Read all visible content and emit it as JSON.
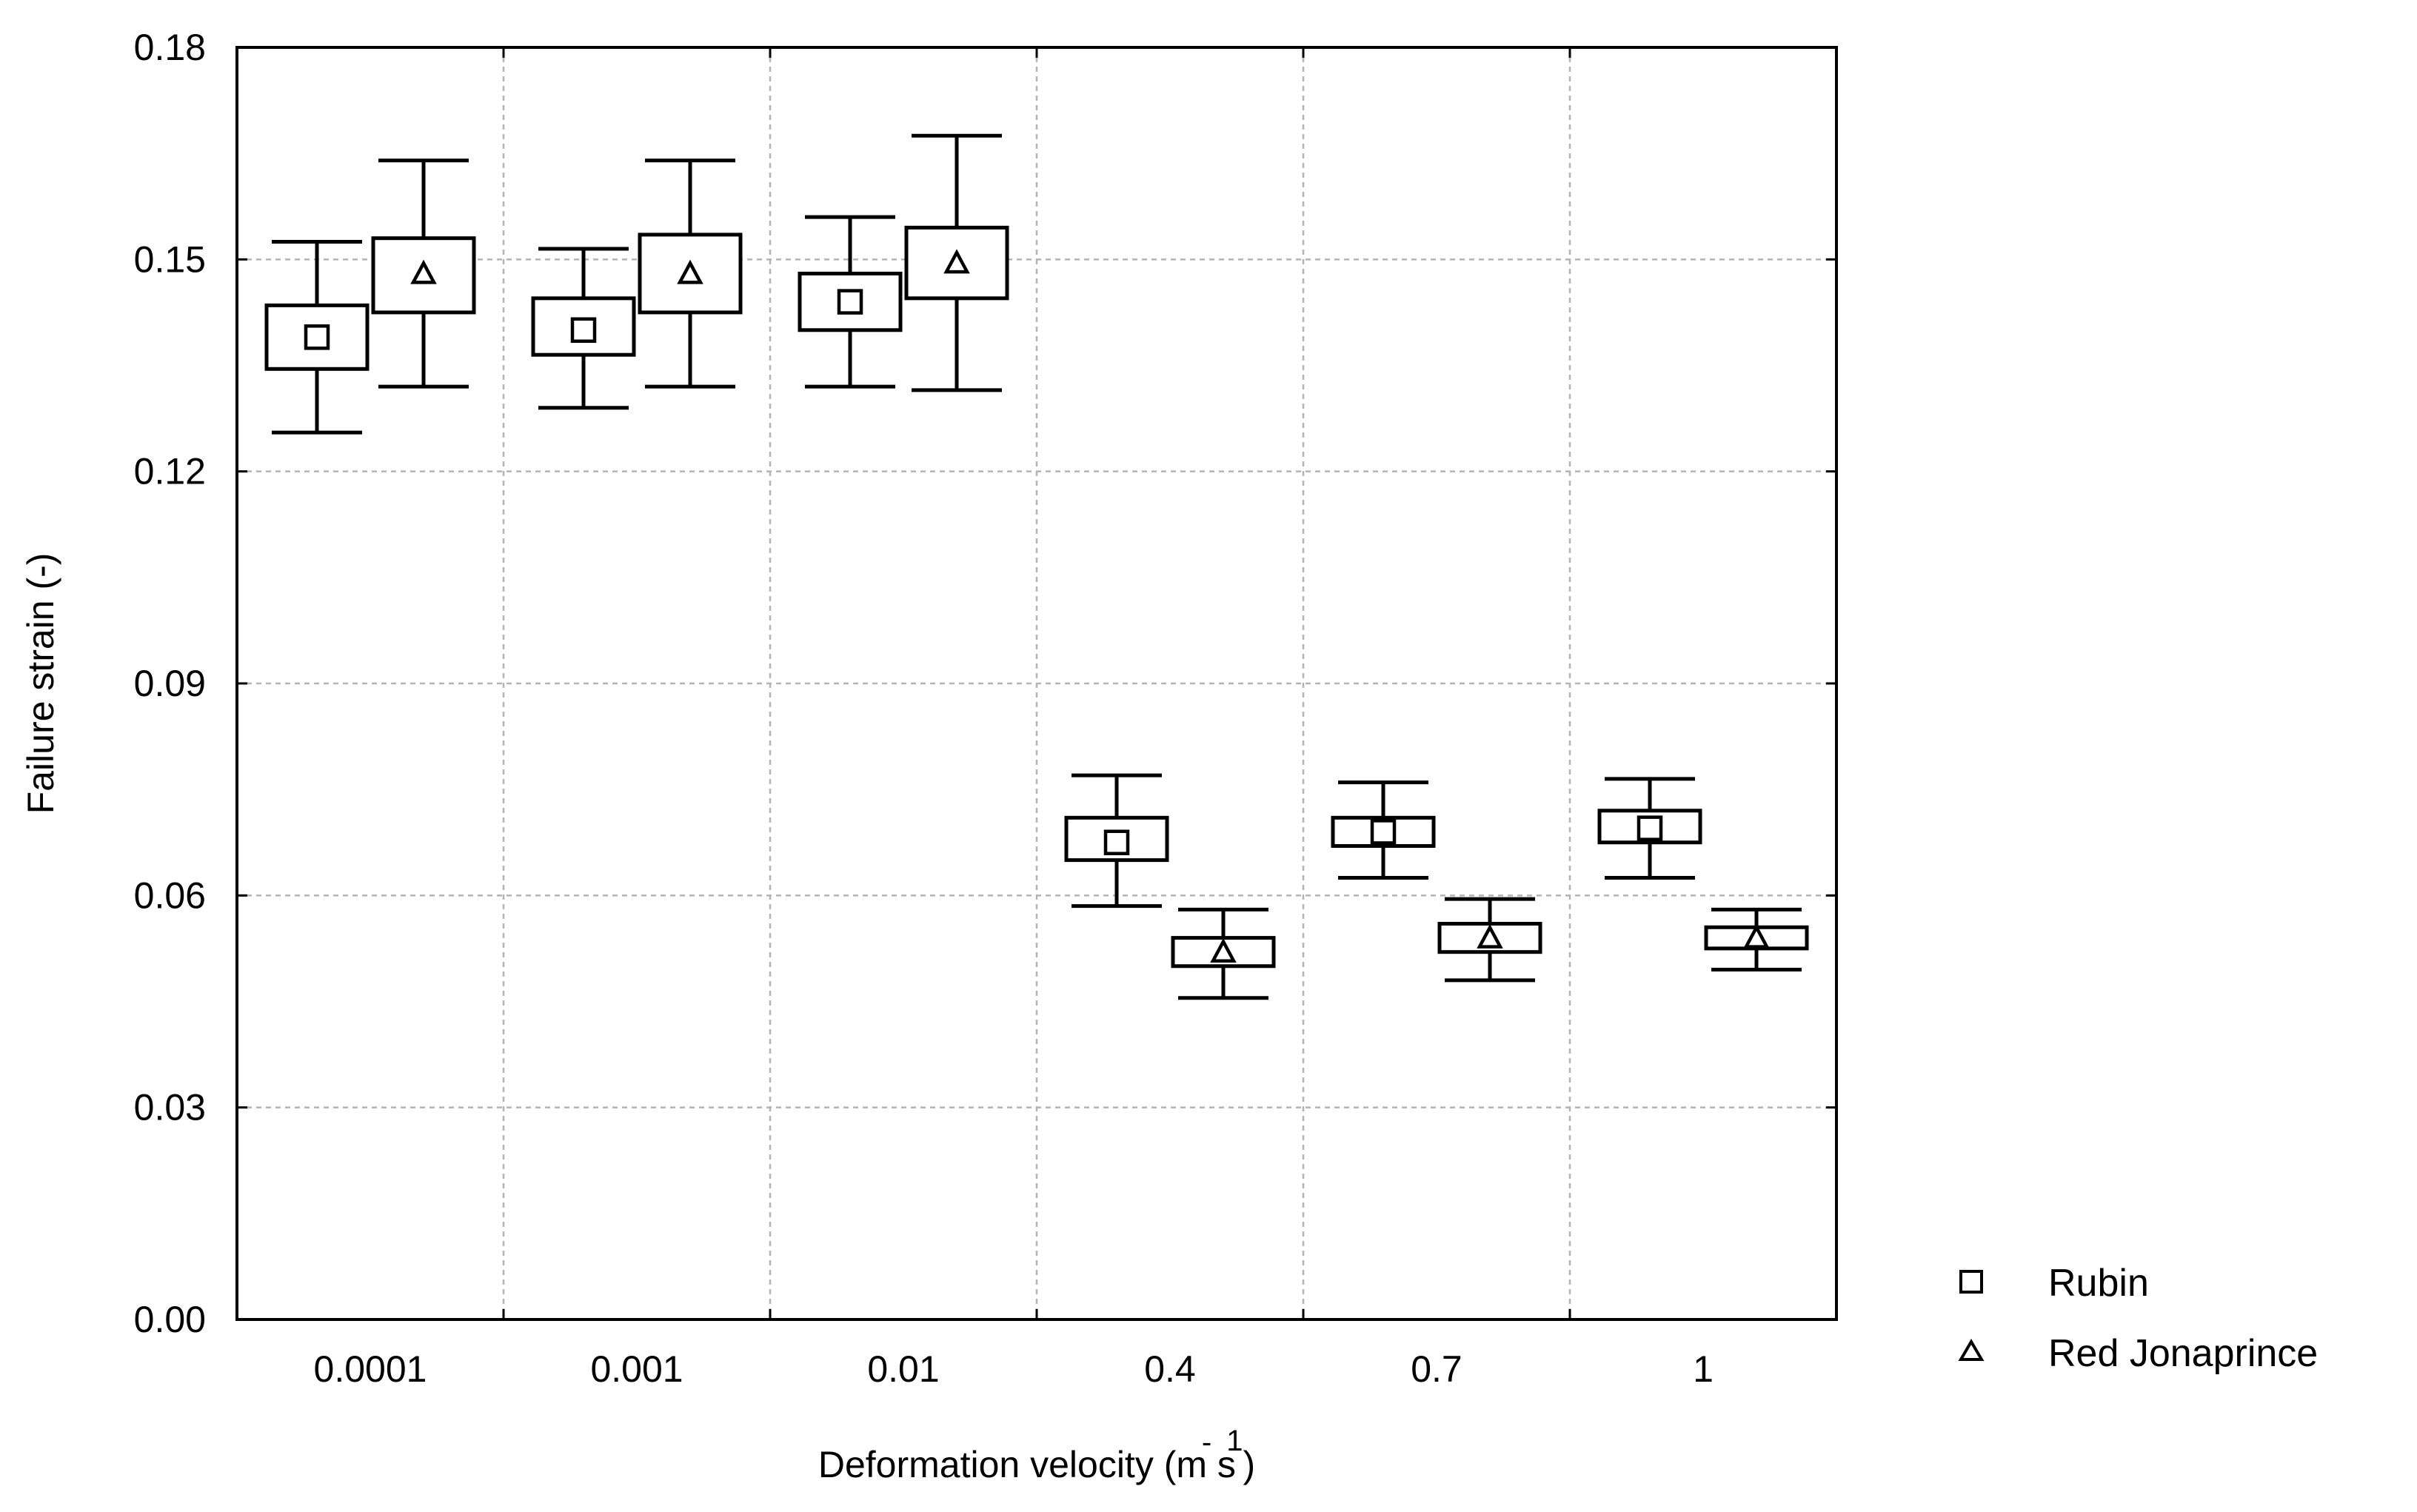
{
  "chart_data": {
    "type": "boxplot",
    "title": "",
    "xlabel": "Deformation velocity (m s",
    "xlabel_minus": "-",
    "xlabel_exp": "1",
    "xlabel_close": ")",
    "ylabel": "Failure strain (-)",
    "ylim": [
      0,
      0.18
    ],
    "yticks": [
      "0.00",
      "0.03",
      "0.06",
      "0.09",
      "0.12",
      "0.15",
      "0.18"
    ],
    "categories": [
      "0.0001",
      "0.001",
      "0.01",
      "0.4",
      "0.7",
      "1"
    ],
    "grid": true,
    "legend_position": "right-bottom",
    "series": [
      {
        "name": "Rubin",
        "marker": "square",
        "mean": [
          0.139,
          0.14,
          0.144,
          0.0675,
          0.069,
          0.0695
        ],
        "box_low": [
          0.1345,
          0.1365,
          0.14,
          0.065,
          0.067,
          0.0675
        ],
        "box_high": [
          0.1435,
          0.1445,
          0.148,
          0.071,
          0.071,
          0.072
        ],
        "whisker_low": [
          0.1255,
          0.129,
          0.132,
          0.0585,
          0.0625,
          0.0625
        ],
        "whisker_high": [
          0.1525,
          0.1515,
          0.156,
          0.077,
          0.076,
          0.0765
        ]
      },
      {
        "name": "Red Jonaprince",
        "marker": "triangle",
        "mean": [
          0.148,
          0.148,
          0.1495,
          0.052,
          0.054,
          0.054
        ],
        "box_low": [
          0.1425,
          0.1425,
          0.1445,
          0.05,
          0.052,
          0.0525
        ],
        "box_high": [
          0.153,
          0.1535,
          0.1545,
          0.054,
          0.056,
          0.0555
        ],
        "whisker_low": [
          0.132,
          0.132,
          0.1315,
          0.0455,
          0.048,
          0.0495
        ],
        "whisker_high": [
          0.164,
          0.164,
          0.1675,
          0.058,
          0.0595,
          0.058
        ]
      }
    ]
  }
}
